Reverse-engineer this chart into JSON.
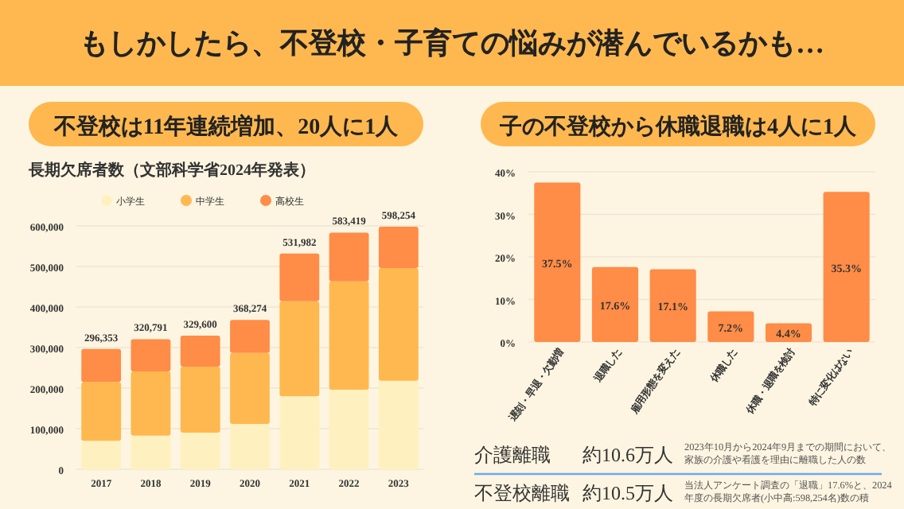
{
  "chart_data": [
    {
      "type": "other",
      "title": "もしかしたら、不登校・子育ての悩みが潜んでいるかも…"
    },
    {
      "type": "bar",
      "title": "不登校は11年連続増加、20人に1人",
      "subtitle": "長期欠席者数（文部科学省2024年発表）",
      "stacked": true,
      "legend": "top",
      "grid": "y",
      "categories": [
        "2017",
        "2018",
        "2019",
        "2020",
        "2021",
        "2022",
        "2023"
      ],
      "series": [
        {
          "name": "小学生",
          "color": "#fff1bf",
          "values": [
            70000,
            83000,
            90000,
            112000,
            180000,
            196000,
            218000
          ]
        },
        {
          "name": "中学生",
          "color": "#ffb84f",
          "values": [
            145000,
            158000,
            163000,
            175000,
            234000,
            267000,
            278000
          ]
        },
        {
          "name": "高校生",
          "color": "#ff8c47",
          "values": [
            81353,
            79791,
            76600,
            81274,
            117982,
            120419,
            102254
          ]
        }
      ],
      "totals": [
        "296,353",
        "320,791",
        "329,600",
        "368,274",
        "531,982",
        "583,419",
        "598,254"
      ],
      "ylim": [
        0,
        600000
      ],
      "yticks": [
        0,
        {
          "value": 100000,
          "label": "100,000"
        },
        {
          "value": 200000,
          "label": "200,000"
        },
        {
          "value": 300000,
          "label": "300,000"
        },
        {
          "value": 400000,
          "label": "400,000"
        },
        {
          "value": 500000,
          "label": "500,000"
        },
        {
          "value": 600000,
          "label": "600,000"
        }
      ]
    },
    {
      "type": "bar",
      "title": "子の不登校から休職退職は4人に1人",
      "grid": "y",
      "color": "#ff8c47",
      "value_labels": [
        "37.5%",
        "17.6%",
        "17.1%",
        "7.2%",
        "4.4%",
        "35.3%"
      ],
      "categories": [
        "遅刻・早退・欠勤増",
        "退職した",
        "雇用形態を変えた",
        "休職した",
        "休職・退職を検討",
        "特に変化はない"
      ],
      "values": [
        37.5,
        17.6,
        17.1,
        7.2,
        4.4,
        35.3
      ],
      "ylim": [
        0,
        40
      ],
      "yticks": [
        {
          "value": 0,
          "label": "0%"
        },
        {
          "value": 10,
          "label": "10%"
        },
        {
          "value": 20,
          "label": "20%"
        },
        {
          "value": 30,
          "label": "30%"
        },
        {
          "value": 40,
          "label": "40%"
        }
      ]
    },
    {
      "type": "other",
      "annotations": [
        "介護離職",
        "約10.6万人",
        "2023年10月から2024年9月までの期間において、家族の介護や看護を理由に離職した人の数",
        "不登校離職",
        "約10.5万人",
        "当法人アンケート調査の「退職」17.6%と、2024年度の長期欠席者(小中高:598,254名)数の積"
      ]
    }
  ]
}
